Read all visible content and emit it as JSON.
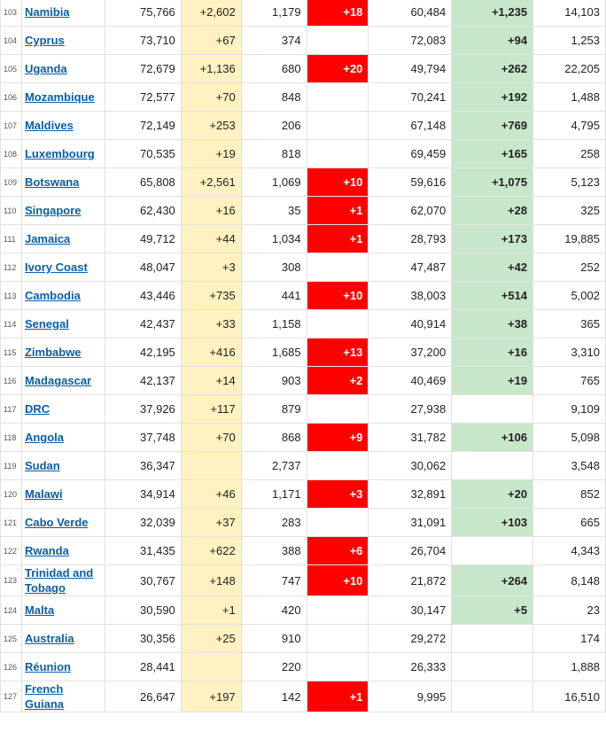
{
  "colors": {
    "new_cases_bg": "#fff1c1",
    "new_deaths_bg": "#ff0000",
    "new_recovered_bg": "#c8e6c9",
    "link": "#0a5ea8"
  },
  "rows": [
    {
      "rank": "103",
      "country": "Namibia",
      "total_cases": "75,766",
      "new_cases": "+2,602",
      "total_deaths": "1,179",
      "new_deaths": "+18",
      "total_recovered": "60,484",
      "new_recovered": "+1,235",
      "active": "14,103"
    },
    {
      "rank": "104",
      "country": "Cyprus",
      "total_cases": "73,710",
      "new_cases": "+67",
      "total_deaths": "374",
      "new_deaths": "",
      "total_recovered": "72,083",
      "new_recovered": "+94",
      "active": "1,253"
    },
    {
      "rank": "105",
      "country": "Uganda",
      "total_cases": "72,679",
      "new_cases": "+1,136",
      "total_deaths": "680",
      "new_deaths": "+20",
      "total_recovered": "49,794",
      "new_recovered": "+262",
      "active": "22,205"
    },
    {
      "rank": "106",
      "country": "Mozambique",
      "total_cases": "72,577",
      "new_cases": "+70",
      "total_deaths": "848",
      "new_deaths": "",
      "total_recovered": "70,241",
      "new_recovered": "+192",
      "active": "1,488"
    },
    {
      "rank": "107",
      "country": "Maldives",
      "total_cases": "72,149",
      "new_cases": "+253",
      "total_deaths": "206",
      "new_deaths": "",
      "total_recovered": "67,148",
      "new_recovered": "+769",
      "active": "4,795"
    },
    {
      "rank": "108",
      "country": "Luxembourg",
      "total_cases": "70,535",
      "new_cases": "+19",
      "total_deaths": "818",
      "new_deaths": "",
      "total_recovered": "69,459",
      "new_recovered": "+165",
      "active": "258"
    },
    {
      "rank": "109",
      "country": "Botswana",
      "total_cases": "65,808",
      "new_cases": "+2,561",
      "total_deaths": "1,069",
      "new_deaths": "+10",
      "total_recovered": "59,616",
      "new_recovered": "+1,075",
      "active": "5,123"
    },
    {
      "rank": "110",
      "country": "Singapore",
      "total_cases": "62,430",
      "new_cases": "+16",
      "total_deaths": "35",
      "new_deaths": "+1",
      "total_recovered": "62,070",
      "new_recovered": "+28",
      "active": "325"
    },
    {
      "rank": "111",
      "country": "Jamaica",
      "total_cases": "49,712",
      "new_cases": "+44",
      "total_deaths": "1,034",
      "new_deaths": "+1",
      "total_recovered": "28,793",
      "new_recovered": "+173",
      "active": "19,885"
    },
    {
      "rank": "112",
      "country": "Ivory Coast",
      "total_cases": "48,047",
      "new_cases": "+3",
      "total_deaths": "308",
      "new_deaths": "",
      "total_recovered": "47,487",
      "new_recovered": "+42",
      "active": "252"
    },
    {
      "rank": "113",
      "country": "Cambodia",
      "total_cases": "43,446",
      "new_cases": "+735",
      "total_deaths": "441",
      "new_deaths": "+10",
      "total_recovered": "38,003",
      "new_recovered": "+514",
      "active": "5,002"
    },
    {
      "rank": "114",
      "country": "Senegal",
      "total_cases": "42,437",
      "new_cases": "+33",
      "total_deaths": "1,158",
      "new_deaths": "",
      "total_recovered": "40,914",
      "new_recovered": "+38",
      "active": "365"
    },
    {
      "rank": "115",
      "country": "Zimbabwe",
      "total_cases": "42,195",
      "new_cases": "+416",
      "total_deaths": "1,685",
      "new_deaths": "+13",
      "total_recovered": "37,200",
      "new_recovered": "+16",
      "active": "3,310"
    },
    {
      "rank": "116",
      "country": "Madagascar",
      "total_cases": "42,137",
      "new_cases": "+14",
      "total_deaths": "903",
      "new_deaths": "+2",
      "total_recovered": "40,469",
      "new_recovered": "+19",
      "active": "765"
    },
    {
      "rank": "117",
      "country": "DRC",
      "total_cases": "37,926",
      "new_cases": "+117",
      "total_deaths": "879",
      "new_deaths": "",
      "total_recovered": "27,938",
      "new_recovered": "",
      "active": "9,109"
    },
    {
      "rank": "118",
      "country": "Angola",
      "total_cases": "37,748",
      "new_cases": "+70",
      "total_deaths": "868",
      "new_deaths": "+9",
      "total_recovered": "31,782",
      "new_recovered": "+106",
      "active": "5,098"
    },
    {
      "rank": "119",
      "country": "Sudan",
      "total_cases": "36,347",
      "new_cases": "",
      "total_deaths": "2,737",
      "new_deaths": "",
      "total_recovered": "30,062",
      "new_recovered": "",
      "active": "3,548"
    },
    {
      "rank": "120",
      "country": "Malawi",
      "total_cases": "34,914",
      "new_cases": "+46",
      "total_deaths": "1,171",
      "new_deaths": "+3",
      "total_recovered": "32,891",
      "new_recovered": "+20",
      "active": "852"
    },
    {
      "rank": "121",
      "country": "Cabo Verde",
      "total_cases": "32,039",
      "new_cases": "+37",
      "total_deaths": "283",
      "new_deaths": "",
      "total_recovered": "31,091",
      "new_recovered": "+103",
      "active": "665"
    },
    {
      "rank": "122",
      "country": "Rwanda",
      "total_cases": "31,435",
      "new_cases": "+622",
      "total_deaths": "388",
      "new_deaths": "+6",
      "total_recovered": "26,704",
      "new_recovered": "",
      "active": "4,343"
    },
    {
      "rank": "123",
      "country": "Trinidad and Tobago",
      "total_cases": "30,767",
      "new_cases": "+148",
      "total_deaths": "747",
      "new_deaths": "+10",
      "total_recovered": "21,872",
      "new_recovered": "+264",
      "active": "8,148"
    },
    {
      "rank": "124",
      "country": "Malta",
      "total_cases": "30,590",
      "new_cases": "+1",
      "total_deaths": "420",
      "new_deaths": "",
      "total_recovered": "30,147",
      "new_recovered": "+5",
      "active": "23"
    },
    {
      "rank": "125",
      "country": "Australia",
      "total_cases": "30,356",
      "new_cases": "+25",
      "total_deaths": "910",
      "new_deaths": "",
      "total_recovered": "29,272",
      "new_recovered": "",
      "active": "174"
    },
    {
      "rank": "126",
      "country": "Réunion",
      "total_cases": "28,441",
      "new_cases": "",
      "total_deaths": "220",
      "new_deaths": "",
      "total_recovered": "26,333",
      "new_recovered": "",
      "active": "1,888"
    },
    {
      "rank": "127",
      "country": "French Guiana",
      "total_cases": "26,647",
      "new_cases": "+197",
      "total_deaths": "142",
      "new_deaths": "+1",
      "total_recovered": "9,995",
      "new_recovered": "",
      "active": "16,510"
    }
  ]
}
